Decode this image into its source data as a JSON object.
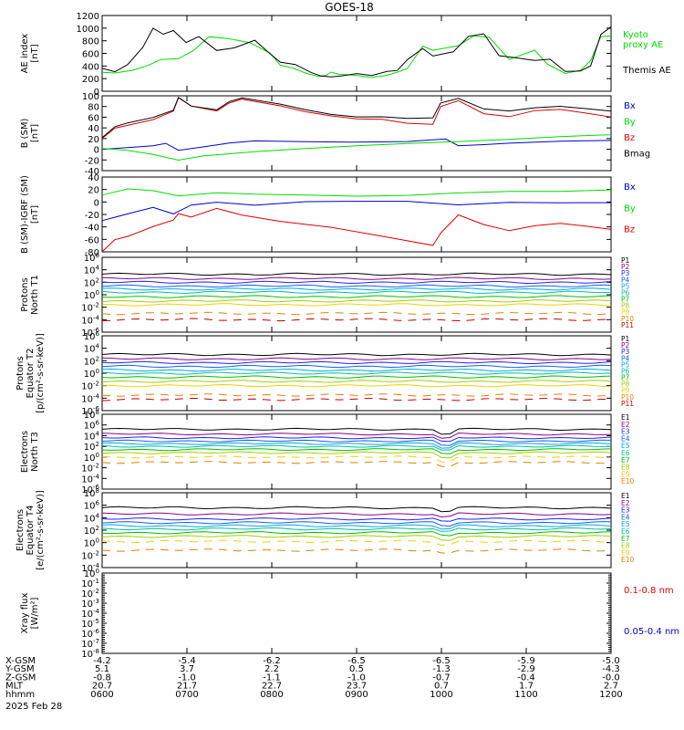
{
  "title": "GOES-18",
  "colors": {
    "black": "#000000",
    "red": "#e00000",
    "green": "#00dd00",
    "blue": "#0000cc",
    "p_palette": [
      "#000000",
      "#8a008a",
      "#2020ff",
      "#1060ff",
      "#00a8e0",
      "#00c0a0",
      "#00c000",
      "#a0d000",
      "#f0d000",
      "#e08000",
      "#c00000"
    ],
    "e_palette": [
      "#000000",
      "#8a008a",
      "#2020ff",
      "#1060ff",
      "#00a8e0",
      "#00c0a0",
      "#00c000",
      "#a0d000",
      "#f0d000",
      "#e08000",
      "#c00000"
    ]
  },
  "chart_data": [
    {
      "id": "ae",
      "type": "line",
      "ylabel": [
        "AE index",
        "[nT]"
      ],
      "yticks": [
        "1200",
        "1000",
        "800",
        "600",
        "400",
        "200",
        "0"
      ],
      "ylim": [
        0,
        1200
      ],
      "series": [
        {
          "name": "Kyoto proxy AE",
          "color": "green",
          "legend_lines": [
            "Kyoto",
            "proxy AE"
          ],
          "x": [
            0,
            0.05,
            0.12,
            0.18,
            0.23,
            0.3,
            0.36,
            0.42,
            0.5,
            0.58,
            0.66,
            0.7,
            0.75,
            0.8,
            0.85,
            0.88,
            0.9,
            0.93,
            1.0,
            1.06,
            1.12,
            1.16,
            1.2,
            1.26,
            1.3,
            1.4,
            1.46,
            1.52,
            1.6,
            1.7,
            1.75,
            1.82,
            1.88,
            1.92,
            1.96,
            2.0
          ],
          "y": [
            300,
            280,
            320,
            400,
            500,
            520,
            650,
            860,
            820,
            760,
            600,
            420,
            380,
            300,
            240,
            250,
            300,
            270,
            260,
            230,
            260,
            300,
            350,
            700,
            640,
            720,
            880,
            860,
            500,
            640,
            420,
            280,
            340,
            500,
            880,
            880
          ]
        },
        {
          "name": "Themis AE",
          "color": "black",
          "legend_lines": [
            "Themis AE"
          ],
          "x": [
            0,
            0.05,
            0.1,
            0.16,
            0.2,
            0.24,
            0.28,
            0.33,
            0.38,
            0.45,
            0.52,
            0.6,
            0.66,
            0.7,
            0.76,
            0.82,
            0.86,
            0.9,
            0.94,
            1.0,
            1.06,
            1.12,
            1.16,
            1.2,
            1.26,
            1.3,
            1.38,
            1.44,
            1.5,
            1.56,
            1.62,
            1.7,
            1.76,
            1.82,
            1.88,
            1.92,
            1.96,
            2.0
          ],
          "y": [
            350,
            300,
            420,
            700,
            1000,
            900,
            950,
            760,
            860,
            650,
            700,
            820,
            600,
            460,
            420,
            300,
            250,
            240,
            250,
            280,
            240,
            300,
            320,
            500,
            680,
            560,
            620,
            860,
            900,
            560,
            540,
            500,
            520,
            320,
            320,
            400,
            900,
            1030
          ]
        }
      ]
    },
    {
      "id": "bsm",
      "type": "line",
      "ylabel": [
        "B (SM)",
        "[nT]"
      ],
      "yticks": [
        "100",
        "80",
        "60",
        "40",
        "20",
        "0",
        "-20",
        "-40"
      ],
      "ylim": [
        -40,
        100
      ],
      "series": [
        {
          "name": "Bx",
          "color": "blue",
          "x": [
            0,
            0.1,
            0.2,
            0.25,
            0.3,
            0.4,
            0.5,
            0.6,
            0.8,
            1.0,
            1.2,
            1.35,
            1.4,
            1.5,
            1.6,
            1.8,
            2.0
          ],
          "y": [
            0,
            2,
            5,
            10,
            -2,
            5,
            12,
            15,
            13,
            12,
            14,
            20,
            8,
            10,
            12,
            15,
            16
          ]
        },
        {
          "name": "By",
          "color": "green",
          "x": [
            0,
            0.1,
            0.2,
            0.3,
            0.4,
            0.6,
            0.8,
            1.0,
            1.2,
            1.4,
            1.6,
            1.8,
            2.0
          ],
          "y": [
            0,
            -3,
            -10,
            -20,
            -12,
            -5,
            0,
            5,
            10,
            15,
            20,
            25,
            28
          ]
        },
        {
          "name": "Bz",
          "color": "red",
          "x": [
            0,
            0.05,
            0.1,
            0.2,
            0.28,
            0.3,
            0.35,
            0.45,
            0.5,
            0.55,
            0.7,
            0.8,
            0.9,
            1.0,
            1.1,
            1.2,
            1.3,
            1.33,
            1.4,
            1.5,
            1.6,
            1.7,
            1.8,
            1.9,
            2.0
          ],
          "y": [
            20,
            40,
            45,
            55,
            70,
            95,
            80,
            72,
            88,
            95,
            82,
            70,
            62,
            57,
            57,
            50,
            48,
            80,
            90,
            65,
            60,
            72,
            75,
            68,
            60
          ]
        },
        {
          "name": "Bmag",
          "color": "black",
          "x": [
            0,
            0.05,
            0.1,
            0.2,
            0.28,
            0.3,
            0.35,
            0.45,
            0.5,
            0.55,
            0.7,
            0.8,
            0.9,
            1.0,
            1.1,
            1.2,
            1.3,
            1.33,
            1.4,
            1.5,
            1.6,
            1.7,
            1.8,
            1.9,
            2.0
          ],
          "y": [
            22,
            42,
            48,
            58,
            72,
            97,
            82,
            75,
            90,
            96,
            84,
            74,
            66,
            62,
            62,
            58,
            58,
            85,
            94,
            75,
            72,
            78,
            80,
            75,
            70
          ]
        }
      ]
    },
    {
      "id": "bsmigrf",
      "type": "line",
      "ylabel": [
        "B (SM)-IGRF (SM)",
        "[nT]"
      ],
      "yticks": [
        "40",
        "20",
        "0",
        "-20",
        "-40",
        "-60",
        "-80"
      ],
      "ylim": [
        -80,
        40
      ],
      "series": [
        {
          "name": "Bx",
          "color": "blue",
          "x": [
            0,
            0.1,
            0.2,
            0.28,
            0.35,
            0.45,
            0.6,
            0.8,
            1.0,
            1.2,
            1.4,
            1.6,
            1.8,
            2.0
          ],
          "y": [
            -30,
            -20,
            -10,
            -20,
            -5,
            0,
            -5,
            0,
            0,
            0,
            -5,
            0,
            0,
            0
          ]
        },
        {
          "name": "By",
          "color": "green",
          "x": [
            0,
            0.1,
            0.2,
            0.3,
            0.45,
            0.6,
            0.8,
            1.0,
            1.2,
            1.4,
            1.6,
            1.8,
            2.0
          ],
          "y": [
            10,
            20,
            18,
            10,
            15,
            12,
            10,
            8,
            10,
            15,
            18,
            18,
            20
          ]
        },
        {
          "name": "Bz",
          "color": "red",
          "x": [
            0,
            0.05,
            0.1,
            0.2,
            0.28,
            0.3,
            0.35,
            0.45,
            0.55,
            0.7,
            0.9,
            1.1,
            1.3,
            1.33,
            1.4,
            1.5,
            1.6,
            1.7,
            1.8,
            1.9,
            2.0
          ],
          "y": [
            -80,
            -60,
            -55,
            -40,
            -30,
            -20,
            -25,
            -10,
            -20,
            -30,
            -40,
            -55,
            -70,
            -50,
            -20,
            -35,
            -45,
            -38,
            -35,
            -40,
            -45
          ]
        }
      ]
    },
    {
      "id": "p1",
      "type": "line",
      "log": true,
      "ylabel": [
        "Protons",
        "North T1"
      ],
      "yticks": [
        "10^6",
        "10^4",
        "10^2",
        "10^0",
        "10^-2",
        "10^-4",
        "10^-6"
      ],
      "ylim": [
        -6,
        6
      ],
      "channels": [
        "P1",
        "P2",
        "P3",
        "P4",
        "P5",
        "P6",
        "P7",
        "P8",
        "P9",
        "P10",
        "P11"
      ],
      "levels": [
        3.3,
        2.6,
        2.0,
        1.4,
        0.9,
        0.4,
        -0.3,
        -1.0,
        -1.6,
        -3.0,
        -4.0
      ]
    },
    {
      "id": "p2",
      "type": "line",
      "log": true,
      "ylabel": [
        "Protons",
        "Equator T2",
        "[p/(cm²-s-sr-keV)]"
      ],
      "yticks": [
        "10^6",
        "10^4",
        "10^2",
        "10^0",
        "10^-2",
        "10^-4",
        "10^-6"
      ],
      "ylim": [
        -6,
        6
      ],
      "channels": [
        "P1",
        "P2",
        "P3",
        "P4",
        "P5",
        "P6",
        "P7",
        "P8",
        "P9",
        "P10",
        "P11"
      ],
      "levels": [
        3.0,
        2.3,
        1.7,
        1.1,
        0.5,
        0.0,
        -0.6,
        -1.3,
        -2.0,
        -3.5,
        -4.2
      ]
    },
    {
      "id": "e1",
      "type": "line",
      "log": true,
      "ylabel": [
        "Electrons",
        "North T3"
      ],
      "yticks": [
        "10^8",
        "10^6",
        "10^4",
        "10^2",
        "10^0",
        "10^-2",
        "10^-4",
        "10^-6"
      ],
      "ylim": [
        -6,
        8
      ],
      "channels": [
        "E1",
        "E2",
        "E3",
        "E4",
        "E5",
        "E6",
        "E7",
        "E8",
        "E9",
        "E10"
      ],
      "levels": [
        5.2,
        4.3,
        3.6,
        3.0,
        2.5,
        2.0,
        1.4,
        0.8,
        0.0,
        -1.0
      ]
    },
    {
      "id": "e2",
      "type": "line",
      "log": true,
      "ylabel": [
        "Electrons",
        "Equator T4",
        "[e/(cm²-s-sr-keV)]"
      ],
      "yticks": [
        "10^8",
        "10^6",
        "10^4",
        "10^2",
        "10^0",
        "10^-2",
        "10^-4"
      ],
      "ylim": [
        -4,
        8
      ],
      "channels": [
        "E1",
        "E2",
        "E3",
        "E4",
        "E5",
        "E6",
        "E7",
        "E8",
        "E9",
        "E10"
      ],
      "levels": [
        5.6,
        4.6,
        3.8,
        3.2,
        2.7,
        2.2,
        1.6,
        1.0,
        0.2,
        -1.2
      ]
    },
    {
      "id": "xray",
      "type": "line",
      "log": true,
      "ylabel": [
        "Xray flux",
        "[W/m²]"
      ],
      "yticks": [
        "10^0",
        "10^-1",
        "10^-2",
        "10^-3",
        "10^-4",
        "10^-5",
        "10^-6",
        "10^-7",
        "10^-8"
      ],
      "ylim": [
        -8,
        0
      ],
      "series": [
        {
          "name": "0.1-0.8 nm",
          "color": "red"
        },
        {
          "name": "0.05-0.4 nm",
          "color": "blue"
        }
      ]
    }
  ],
  "ephemeris": {
    "rows": [
      {
        "label": "X-GSM",
        "values": [
          "-4.2",
          "-5.4",
          "-6.2",
          "-6.5",
          "-6.5",
          "-5.9",
          "-5.0"
        ]
      },
      {
        "label": "Y-GSM",
        "values": [
          "5.1",
          "3.7",
          "2.2",
          "0.5",
          "-1.3",
          "-2.9",
          "-4.3"
        ]
      },
      {
        "label": "Z-GSM",
        "values": [
          "-0.8",
          "-1.0",
          "-1.1",
          "-1.0",
          "-0.7",
          "-0.4",
          "-0.0"
        ]
      },
      {
        "label": "MLT",
        "values": [
          "20.7",
          "21.7",
          "22.7",
          "23.7",
          "0.7",
          "1.7",
          "2.7"
        ]
      },
      {
        "label": "hhmm",
        "values": [
          "0600",
          "0700",
          "0800",
          "0900",
          "1000",
          "1100",
          "1200"
        ]
      }
    ],
    "date": "2025 Feb 28"
  }
}
